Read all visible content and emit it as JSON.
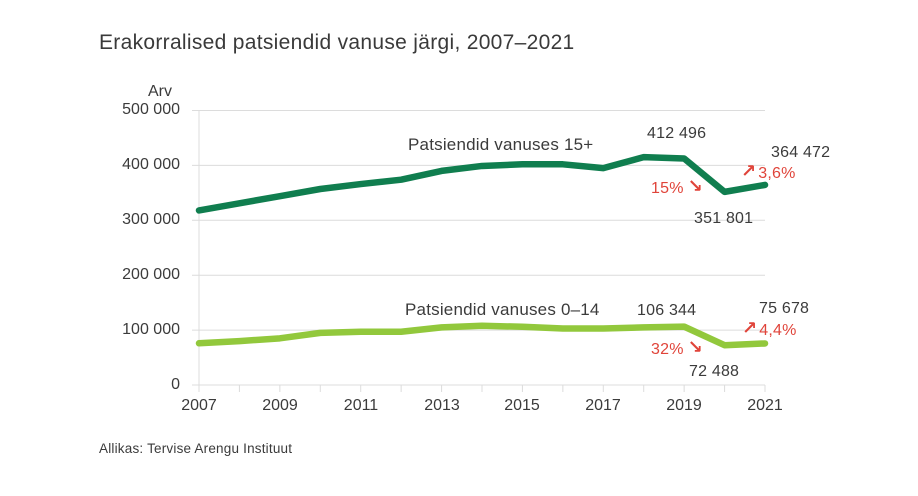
{
  "title": "Erakorralised patsiendid vanuse järgi, 2007–2021",
  "source": "Allikas: Tervise Arengu Instituut",
  "colors": {
    "series_15plus": "#107e4f",
    "series_0_14": "#92c83c",
    "annotation_red": "#e0443a",
    "text": "#3b3b3b",
    "grid": "#dcdcdc"
  },
  "icons": {
    "trend_down": "↘",
    "trend_up": "↗"
  },
  "chart_data": {
    "type": "line",
    "title": "Erakorralised patsiendid vanuse järgi, 2007–2021",
    "ylabel": "Arv",
    "xlabel": "",
    "ylim": [
      0,
      500000
    ],
    "ytick_step": 100000,
    "ytick_labels": [
      "500 000",
      "400 000",
      "300 000",
      "200 000",
      "100 000",
      "0"
    ],
    "x": [
      2007,
      2008,
      2009,
      2010,
      2011,
      2012,
      2013,
      2014,
      2015,
      2016,
      2017,
      2018,
      2019,
      2020,
      2021
    ],
    "xtick_labels": [
      "2007",
      "2009",
      "2011",
      "2013",
      "2015",
      "2017",
      "2019",
      "2021"
    ],
    "grid": "horizontal",
    "legend_position": "inline-labels",
    "series": [
      {
        "name": "Patsiendid vanuses 15+",
        "color": "#107e4f",
        "values": [
          318000,
          331000,
          344000,
          357000,
          366000,
          374000,
          390000,
          399000,
          402000,
          402000,
          395000,
          415000,
          412496,
          351801,
          364472
        ]
      },
      {
        "name": "Patsiendid vanuses 0–14",
        "color": "#92c83c",
        "values": [
          76000,
          80000,
          85000,
          95000,
          97000,
          97000,
          105000,
          108000,
          106000,
          103000,
          103000,
          105000,
          106344,
          72488,
          75678
        ]
      }
    ],
    "annotations": [
      {
        "series": "Patsiendid vanuses 15+",
        "x": 2019,
        "label": "412 496"
      },
      {
        "series": "Patsiendid vanuses 15+",
        "x": 2020,
        "label": "351 801"
      },
      {
        "series": "Patsiendid vanuses 15+",
        "x": 2021,
        "label": "364 472"
      },
      {
        "series": "Patsiendid vanuses 15+",
        "label": "15%",
        "direction": "down",
        "meaning": "langus 2019–2020"
      },
      {
        "series": "Patsiendid vanuses 15+",
        "label": "3,6%",
        "direction": "up",
        "meaning": "tõus 2020–2021"
      },
      {
        "series": "Patsiendid vanuses 0–14",
        "x": 2019,
        "label": "106 344"
      },
      {
        "series": "Patsiendid vanuses 0–14",
        "x": 2020,
        "label": "72 488"
      },
      {
        "series": "Patsiendid vanuses 0–14",
        "x": 2021,
        "label": "75 678"
      },
      {
        "series": "Patsiendid vanuses 0–14",
        "label": "32%",
        "direction": "down",
        "meaning": "langus 2019–2020"
      },
      {
        "series": "Patsiendid vanuses 0–14",
        "label": "4,4%",
        "direction": "up",
        "meaning": "tõus 2020–2021"
      }
    ]
  }
}
